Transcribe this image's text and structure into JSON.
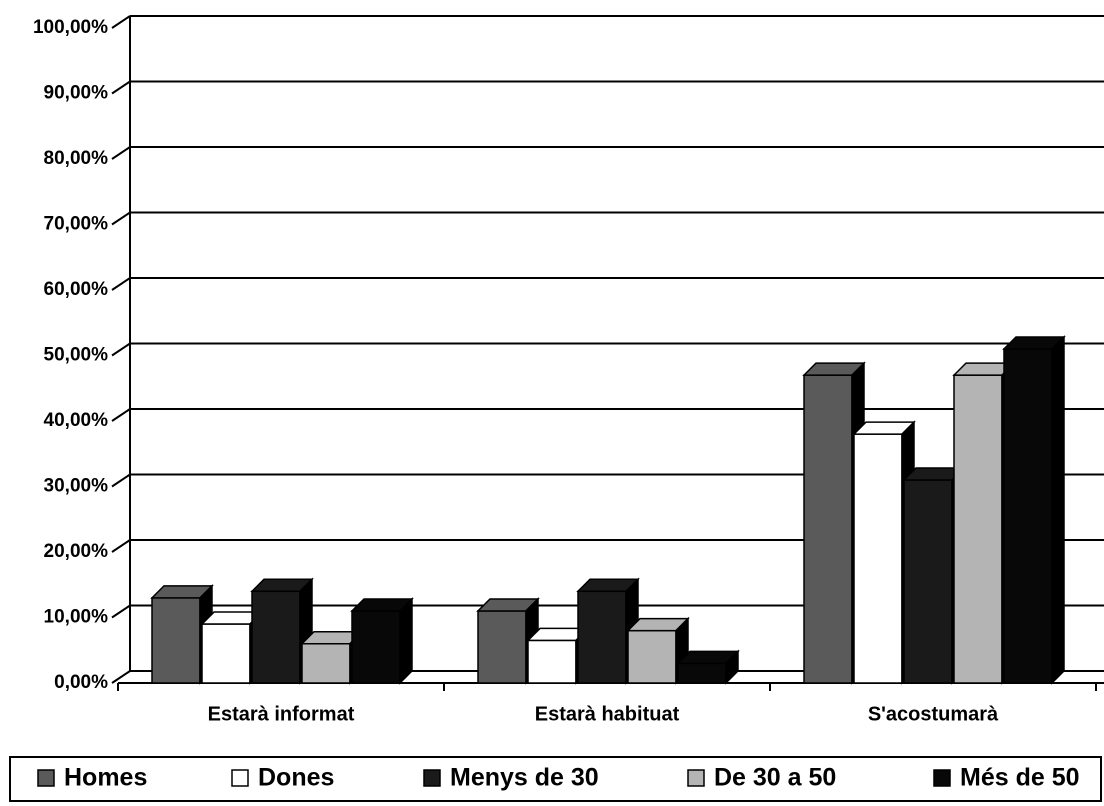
{
  "chart_data": {
    "type": "bar",
    "legend": "bottom",
    "grid": true,
    "categories": [
      "Estarà informat",
      "Estarà habituat",
      "S'acostumarà"
    ],
    "series": [
      {
        "name": "Homes",
        "color": "#5a5a5a",
        "values": [
          13,
          11,
          47
        ]
      },
      {
        "name": "Dones",
        "color": "#ffffff",
        "values": [
          9,
          6.5,
          38
        ]
      },
      {
        "name": "Menys de 30",
        "color": "#1a1a1a",
        "values": [
          14,
          14,
          31
        ]
      },
      {
        "name": "De 30 a 50",
        "color": "#b4b4b4",
        "values": [
          6,
          8,
          47
        ]
      },
      {
        "name": "Més de 50",
        "color": "#080808",
        "values": [
          11,
          3,
          51
        ]
      }
    ],
    "ylim": [
      0,
      100
    ],
    "yticks": [
      {
        "value": 0,
        "label": "0,00%"
      },
      {
        "value": 10,
        "label": "10,00%"
      },
      {
        "value": 20,
        "label": "20,00%"
      },
      {
        "value": 30,
        "label": "30,00%"
      },
      {
        "value": 40,
        "label": "40,00%"
      },
      {
        "value": 50,
        "label": "50,00%"
      },
      {
        "value": 60,
        "label": "60,00%"
      },
      {
        "value": 70,
        "label": "70,00%"
      },
      {
        "value": 80,
        "label": "80,00%"
      },
      {
        "value": 90,
        "label": "90,00%"
      },
      {
        "value": 100,
        "label": "100,00%"
      }
    ]
  }
}
